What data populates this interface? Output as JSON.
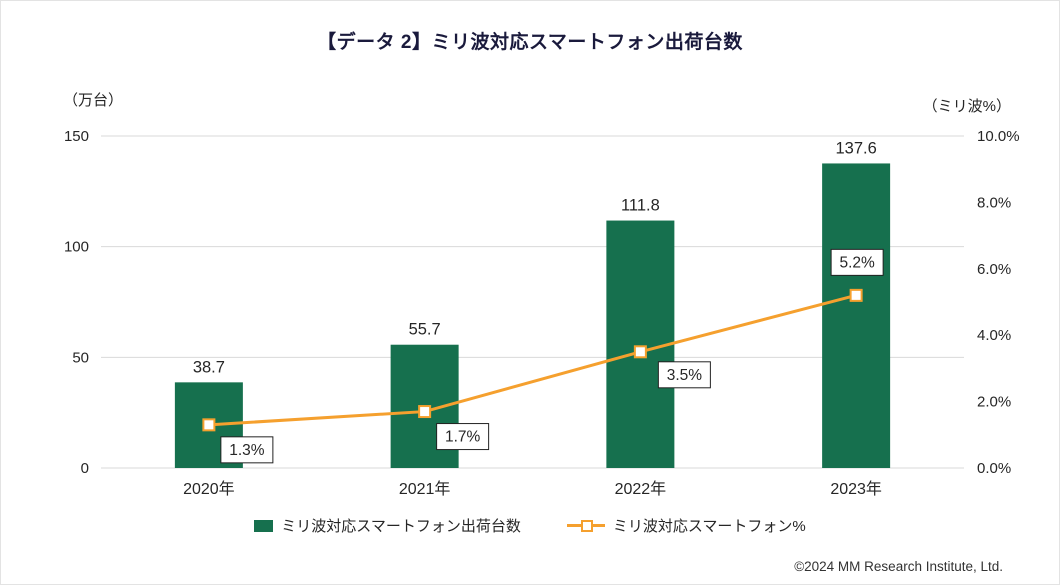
{
  "title": "【データ 2】ミリ波対応スマートフォン出荷台数",
  "left_axis_unit": "（万台）",
  "right_axis_unit": "（ミリ波%）",
  "footer": "©2024 MM Research Institute, Ltd.",
  "legend": [
    {
      "label": "ミリ波対応スマートフォン出荷台数",
      "type": "bar"
    },
    {
      "label": "ミリ波対応スマートフォン%",
      "type": "line"
    }
  ],
  "chart_data": {
    "type": "bar",
    "subtype": "bar+line combo, dual axis",
    "title": "【データ 2】ミリ波対応スマートフォン出荷台数",
    "categories": [
      "2020年",
      "2021年",
      "2022年",
      "2023年"
    ],
    "series": [
      {
        "name": "ミリ波対応スマートフォン出荷台数",
        "type": "bar",
        "axis": "left",
        "color": "#16704e",
        "values": [
          38.7,
          55.7,
          111.8,
          137.6
        ],
        "data_labels": [
          "38.7",
          "55.7",
          "111.8",
          "137.6"
        ]
      },
      {
        "name": "ミリ波対応スマートフォン%",
        "type": "line",
        "axis": "right",
        "color": "#f5a02e",
        "values": [
          1.3,
          1.7,
          3.5,
          5.2
        ],
        "data_labels": [
          "1.3%",
          "1.7%",
          "3.5%",
          "5.2%"
        ]
      }
    ],
    "left_axis": {
      "label": "（万台）",
      "min": 0,
      "max": 150,
      "ticks": [
        0,
        50,
        100,
        150
      ],
      "tick_labels": [
        "0",
        "50",
        "100",
        "150"
      ]
    },
    "right_axis": {
      "label": "（ミリ波%）",
      "min": 0,
      "max": 10,
      "ticks": [
        0,
        2,
        4,
        6,
        8,
        10
      ],
      "tick_labels": [
        "0.0%",
        "2.0%",
        "4.0%",
        "6.0%",
        "8.0%",
        "10.0%"
      ]
    },
    "grid": true,
    "legend_position": "bottom"
  }
}
